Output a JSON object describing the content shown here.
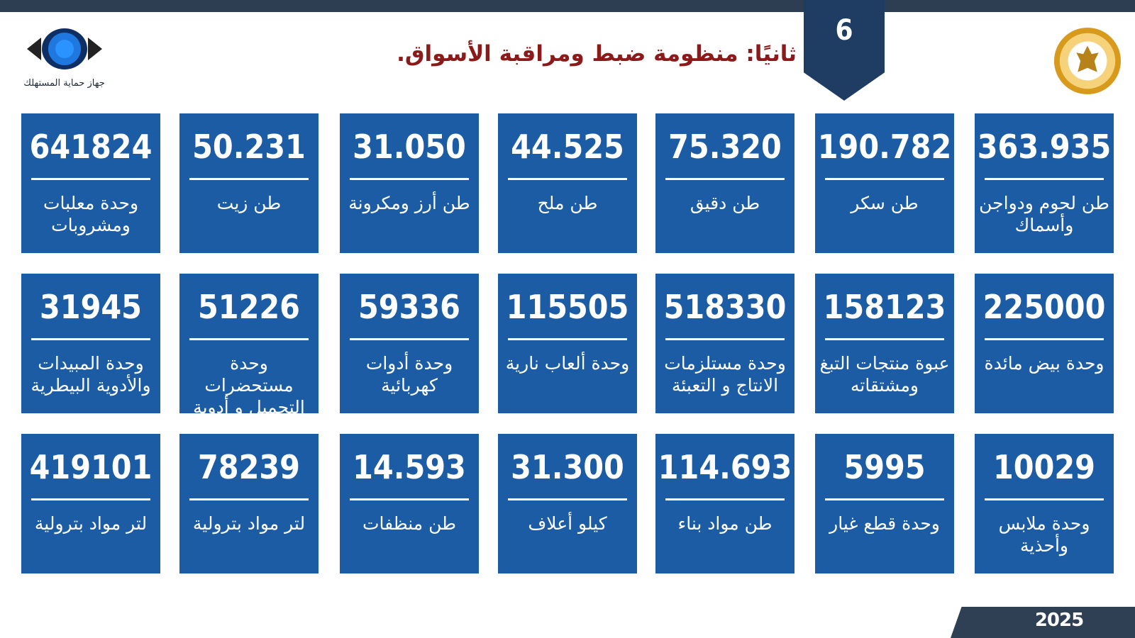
{
  "slide_number": "6",
  "title": "ثانيًا: منظومة ضبط ومراقبة الأسواق.",
  "left_logo_caption": "جهاز حماية المستهلك",
  "year": "2025",
  "colors": {
    "tile": "#1b5ca4",
    "title": "#8b1a1a",
    "badge": "#1f3d63",
    "top_bar": "#2e3e52"
  },
  "rows": [
    [
      {
        "value": "641824",
        "label": "وحدة معلبات ومشروبات"
      },
      {
        "value": "50.231",
        "label": "طن زيت"
      },
      {
        "value": "31.050",
        "label": "طن أرز ومكرونة"
      },
      {
        "value": "44.525",
        "label": "طن ملح"
      },
      {
        "value": "75.320",
        "label": "طن دقيق"
      },
      {
        "value": "190.782",
        "label": "طن سكر"
      },
      {
        "value": "363.935",
        "label": "طن لحوم ودواجن وأسماك"
      }
    ],
    [
      {
        "value": "31945",
        "label": "وحدة المبيدات والأدوية البيطرية"
      },
      {
        "value": "51226",
        "label": "وحدة مستحضرات التجميل و أدوية"
      },
      {
        "value": "59336",
        "label": "وحدة أدوات كهربائية"
      },
      {
        "value": "115505",
        "label": "وحدة ألعاب نارية"
      },
      {
        "value": "518330",
        "label": "وحدة مستلزمات الانتاج و التعبئة"
      },
      {
        "value": "158123",
        "label": "عبوة منتجات التبغ ومشتقاته"
      },
      {
        "value": "225000",
        "label": "وحدة بيض مائدة"
      }
    ],
    [
      {
        "value": "419101",
        "label": "لتر مواد بترولية"
      },
      {
        "value": "78239",
        "label": "لتر مواد بترولية"
      },
      {
        "value": "14.593",
        "label": "طن منظفات"
      },
      {
        "value": "31.300",
        "label": "كيلو أعلاف"
      },
      {
        "value": "114.693",
        "label": "طن مواد بناء"
      },
      {
        "value": "5995",
        "label": "وحدة قطع غيار"
      },
      {
        "value": "10029",
        "label": "وحدة ملابس وأحذية"
      }
    ]
  ]
}
